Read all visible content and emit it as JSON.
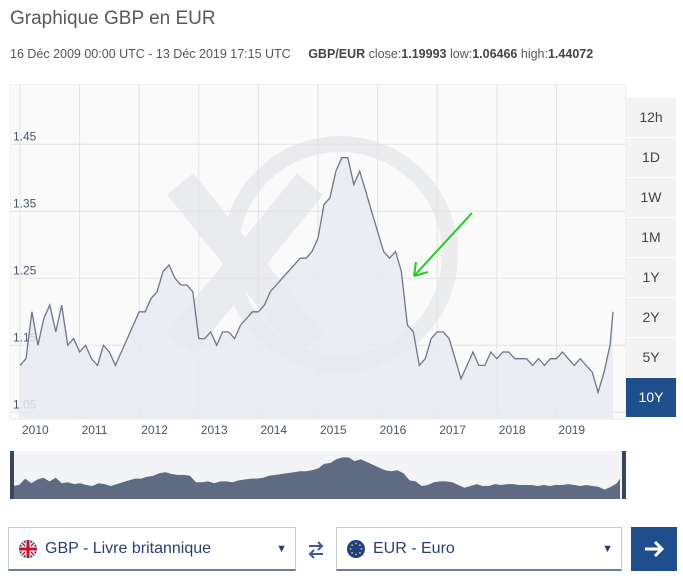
{
  "title": "Graphique GBP en EUR",
  "meta": {
    "range": "16 Déc 2009 00:00 UTC - 13 Déc 2019 17:15 UTC",
    "pair": "GBP/EUR",
    "close_label": "close:",
    "close": "1.19993",
    "low_label": "low:",
    "low": "1.06466",
    "high_label": "high:",
    "high": "1.44072"
  },
  "range_buttons": [
    {
      "label": "12h",
      "active": false
    },
    {
      "label": "1D",
      "active": false
    },
    {
      "label": "1W",
      "active": false
    },
    {
      "label": "1M",
      "active": false
    },
    {
      "label": "1Y",
      "active": false
    },
    {
      "label": "2Y",
      "active": false
    },
    {
      "label": "5Y",
      "active": false
    },
    {
      "label": "10Y",
      "active": true
    }
  ],
  "from_currency": {
    "label": "GBP - Livre britannique",
    "icon": "uk-flag-icon"
  },
  "to_currency": {
    "label": "EUR - Euro",
    "icon": "eu-flag-icon"
  },
  "colors": {
    "accent": "#1f4e8c",
    "line": "#6b7688",
    "fill": "#e8eaf0",
    "annotation": "#22cc22"
  },
  "chart_data": {
    "type": "area",
    "x_ticks": [
      "2010",
      "2011",
      "2012",
      "2013",
      "2014",
      "2015",
      "2016",
      "2017",
      "2018",
      "2019"
    ],
    "y_ticks": [
      "1.05",
      "1.15",
      "1.25",
      "1.35",
      "1.45"
    ],
    "ylim": [
      1.04,
      1.54
    ],
    "xlim": [
      2010.0,
      2020.0
    ],
    "grid": true,
    "x": [
      2010.0,
      2010.1,
      2010.2,
      2010.3,
      2010.4,
      2010.5,
      2010.6,
      2010.7,
      2010.8,
      2010.9,
      2011.0,
      2011.1,
      2011.2,
      2011.3,
      2011.4,
      2011.5,
      2011.6,
      2011.7,
      2011.8,
      2011.9,
      2012.0,
      2012.1,
      2012.2,
      2012.3,
      2012.4,
      2012.5,
      2012.6,
      2012.7,
      2012.8,
      2012.9,
      2013.0,
      2013.1,
      2013.2,
      2013.3,
      2013.4,
      2013.5,
      2013.6,
      2013.7,
      2013.8,
      2013.9,
      2014.0,
      2014.1,
      2014.2,
      2014.3,
      2014.4,
      2014.5,
      2014.6,
      2014.7,
      2014.8,
      2014.9,
      2015.0,
      2015.1,
      2015.2,
      2015.3,
      2015.4,
      2015.5,
      2015.6,
      2015.7,
      2015.8,
      2015.9,
      2016.0,
      2016.1,
      2016.2,
      2016.3,
      2016.4,
      2016.5,
      2016.6,
      2016.7,
      2016.8,
      2016.9,
      2017.0,
      2017.1,
      2017.2,
      2017.3,
      2017.4,
      2017.5,
      2017.6,
      2017.7,
      2017.8,
      2017.9,
      2018.0,
      2018.1,
      2018.2,
      2018.3,
      2018.4,
      2018.5,
      2018.6,
      2018.7,
      2018.8,
      2018.9,
      2019.0,
      2019.1,
      2019.2,
      2019.3,
      2019.4,
      2019.5,
      2019.6,
      2019.7,
      2019.8,
      2019.9,
      2019.95
    ],
    "values": [
      1.12,
      1.13,
      1.2,
      1.15,
      1.19,
      1.21,
      1.17,
      1.21,
      1.15,
      1.16,
      1.14,
      1.15,
      1.13,
      1.12,
      1.15,
      1.14,
      1.12,
      1.14,
      1.16,
      1.18,
      1.2,
      1.2,
      1.22,
      1.23,
      1.26,
      1.27,
      1.25,
      1.24,
      1.24,
      1.23,
      1.16,
      1.16,
      1.17,
      1.15,
      1.17,
      1.17,
      1.16,
      1.18,
      1.19,
      1.2,
      1.2,
      1.21,
      1.23,
      1.24,
      1.25,
      1.26,
      1.27,
      1.28,
      1.28,
      1.29,
      1.31,
      1.36,
      1.37,
      1.41,
      1.43,
      1.43,
      1.39,
      1.41,
      1.38,
      1.35,
      1.32,
      1.29,
      1.28,
      1.29,
      1.26,
      1.18,
      1.17,
      1.12,
      1.13,
      1.16,
      1.17,
      1.17,
      1.16,
      1.13,
      1.1,
      1.12,
      1.14,
      1.12,
      1.12,
      1.14,
      1.13,
      1.14,
      1.14,
      1.13,
      1.13,
      1.13,
      1.12,
      1.13,
      1.12,
      1.13,
      1.13,
      1.14,
      1.13,
      1.12,
      1.13,
      1.12,
      1.11,
      1.08,
      1.11,
      1.15,
      1.2
    ]
  }
}
